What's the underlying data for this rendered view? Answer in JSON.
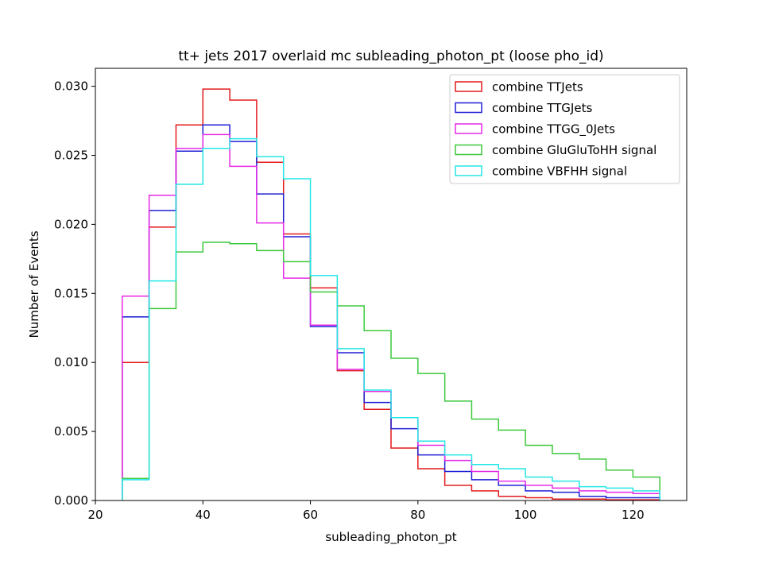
{
  "chart_data": {
    "type": "line",
    "subtype": "step-histogram",
    "title": "tt+ jets 2017 overlaid mc subleading_photon_pt (loose pho_id)",
    "xlabel": "subleading_photon_pt",
    "ylabel": "Number of Events",
    "xlim": [
      20,
      130
    ],
    "ylim": [
      0,
      0.0313
    ],
    "xticks": [
      20,
      40,
      60,
      80,
      100,
      120
    ],
    "xtick_labels": [
      "20",
      "40",
      "60",
      "80",
      "100",
      "120"
    ],
    "yticks": [
      0.0,
      0.005,
      0.01,
      0.015,
      0.02,
      0.025,
      0.03
    ],
    "ytick_labels": [
      "0.000",
      "0.005",
      "0.010",
      "0.015",
      "0.020",
      "0.025",
      "0.030"
    ],
    "grid": false,
    "legend_position": "top-right",
    "bin_edges": [
      25,
      30,
      35,
      40,
      45,
      50,
      55,
      60,
      65,
      70,
      75,
      80,
      85,
      90,
      95,
      100,
      105,
      110,
      115,
      120,
      125
    ],
    "series": [
      {
        "name": "combine TTJets",
        "color": "#e41a1c",
        "values": [
          0.01,
          0.0198,
          0.0272,
          0.0298,
          0.029,
          0.0245,
          0.0193,
          0.0154,
          0.0094,
          0.0066,
          0.0038,
          0.0023,
          0.0011,
          0.0007,
          0.0003,
          0.0002,
          0.0001,
          0.0001,
          5e-05,
          5e-05
        ]
      },
      {
        "name": "combine TTGJets",
        "color": "#1f1fd6",
        "values": [
          0.0133,
          0.021,
          0.0253,
          0.0272,
          0.026,
          0.0222,
          0.0191,
          0.0126,
          0.0107,
          0.0071,
          0.0052,
          0.0033,
          0.0021,
          0.0015,
          0.0011,
          0.0007,
          0.0006,
          0.0003,
          0.0002,
          0.0002
        ]
      },
      {
        "name": "combine TTGG_0Jets",
        "color": "#e62ae6",
        "values": [
          0.0148,
          0.0221,
          0.0255,
          0.0265,
          0.0242,
          0.0201,
          0.0161,
          0.0127,
          0.0095,
          0.0079,
          0.006,
          0.004,
          0.0029,
          0.0021,
          0.0014,
          0.0011,
          0.0009,
          0.0007,
          0.0006,
          0.0005
        ]
      },
      {
        "name": "combine GluGluToHH signal",
        "color": "#3cc83c",
        "values": [
          0.0016,
          0.0139,
          0.018,
          0.0187,
          0.0186,
          0.0181,
          0.0173,
          0.0151,
          0.0141,
          0.0123,
          0.0103,
          0.0092,
          0.0072,
          0.0059,
          0.0051,
          0.004,
          0.0034,
          0.003,
          0.0022,
          0.0017
        ]
      },
      {
        "name": "combine VBFHH signal",
        "color": "#25e6e6",
        "values": [
          0.0015,
          0.0159,
          0.0229,
          0.0255,
          0.0262,
          0.0249,
          0.0233,
          0.0163,
          0.011,
          0.008,
          0.006,
          0.0043,
          0.0033,
          0.0026,
          0.0023,
          0.0017,
          0.0014,
          0.001,
          0.0009,
          0.0007
        ]
      }
    ]
  }
}
